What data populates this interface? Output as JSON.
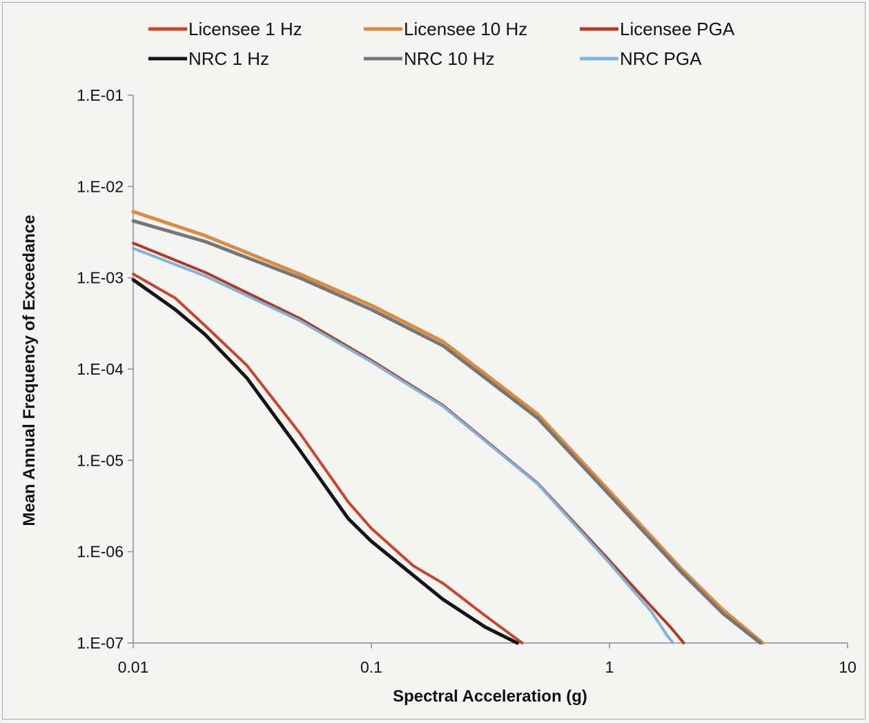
{
  "chart_data": {
    "type": "line",
    "title": "",
    "xlabel": "Spectral Acceleration (g)",
    "ylabel": "Mean Annual Frequency of Exceedance",
    "x_scale": "log",
    "y_scale": "log",
    "xlim": [
      0.01,
      10
    ],
    "ylim": [
      1e-07,
      0.1
    ],
    "x_ticks": [
      {
        "value": 0.01,
        "label": "0.01"
      },
      {
        "value": 0.1,
        "label": "0.1"
      },
      {
        "value": 1,
        "label": "1"
      },
      {
        "value": 10,
        "label": "10"
      }
    ],
    "y_ticks": [
      {
        "value": 0.1,
        "label": "1.E-01"
      },
      {
        "value": 0.01,
        "label": "1.E-02"
      },
      {
        "value": 0.001,
        "label": "1.E-03"
      },
      {
        "value": 0.0001,
        "label": "1.E-04"
      },
      {
        "value": 1e-05,
        "label": "1.E-05"
      },
      {
        "value": 1e-06,
        "label": "1.E-06"
      },
      {
        "value": 1e-07,
        "label": "1.E-07"
      }
    ],
    "grid": false,
    "legend_position": "top",
    "series": [
      {
        "name": "Licensee 1 Hz",
        "color": "#c8452a",
        "width": 4,
        "x": [
          0.01,
          0.015,
          0.02,
          0.03,
          0.05,
          0.08,
          0.1,
          0.15,
          0.2,
          0.3,
          0.43
        ],
        "y": [
          0.0011,
          0.0006,
          0.0003,
          0.00011,
          2e-05,
          3.5e-06,
          1.8e-06,
          7e-07,
          4.5e-07,
          2e-07,
          1e-07
        ]
      },
      {
        "name": "Licensee 10 Hz",
        "color": "#de8a3c",
        "width": 5,
        "x": [
          0.01,
          0.02,
          0.05,
          0.1,
          0.2,
          0.5,
          1,
          2,
          3,
          4.4
        ],
        "y": [
          0.0053,
          0.0029,
          0.0011,
          0.0005,
          0.0002,
          3.2e-05,
          4.6e-06,
          6.5e-07,
          2.3e-07,
          1e-07
        ]
      },
      {
        "name": "Licensee PGA",
        "color": "#b03a26",
        "width": 4,
        "x": [
          0.01,
          0.02,
          0.05,
          0.1,
          0.2,
          0.5,
          1,
          1.5,
          1.8,
          2.05
        ],
        "y": [
          0.0024,
          0.00115,
          0.00036,
          0.000125,
          4e-05,
          5.6e-06,
          8e-07,
          2.5e-07,
          1.5e-07,
          1e-07
        ]
      },
      {
        "name": "NRC 1 Hz",
        "color": "#141414",
        "width": 5,
        "x": [
          0.01,
          0.015,
          0.02,
          0.03,
          0.05,
          0.08,
          0.1,
          0.15,
          0.2,
          0.3,
          0.41
        ],
        "y": [
          0.00095,
          0.00045,
          0.00024,
          8e-05,
          1.3e-05,
          2.3e-06,
          1.3e-06,
          5.5e-07,
          3e-07,
          1.5e-07,
          1e-07
        ]
      },
      {
        "name": "NRC 10 Hz",
        "color": "#767676",
        "width": 5,
        "x": [
          0.01,
          0.02,
          0.05,
          0.1,
          0.2,
          0.5,
          1,
          2,
          3,
          4.3
        ],
        "y": [
          0.0042,
          0.0025,
          0.001,
          0.00045,
          0.00018,
          2.9e-05,
          4.2e-06,
          6e-07,
          2.1e-07,
          1e-07
        ]
      },
      {
        "name": "NRC PGA",
        "color": "#7fb3d9",
        "width": 4,
        "x": [
          0.01,
          0.02,
          0.05,
          0.1,
          0.2,
          0.5,
          1,
          1.5,
          1.75,
          1.85
        ],
        "y": [
          0.0021,
          0.00105,
          0.00034,
          0.00012,
          3.9e-05,
          5.5e-06,
          7.5e-07,
          2.2e-07,
          1.2e-07,
          1e-07
        ]
      }
    ]
  }
}
